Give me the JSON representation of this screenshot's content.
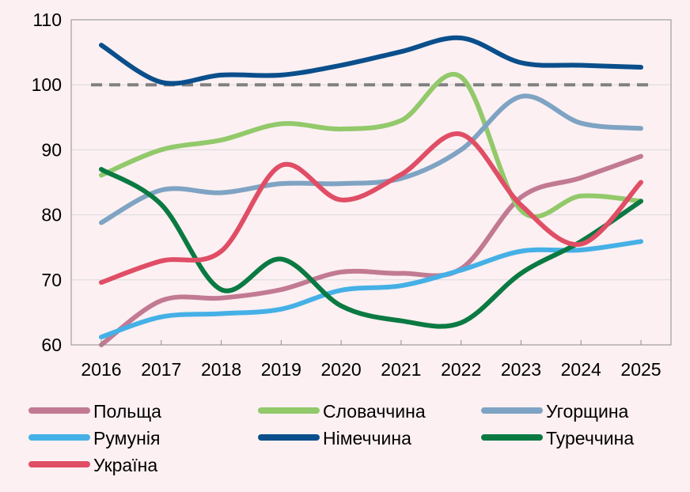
{
  "chart_data": {
    "type": "line",
    "title": "",
    "xlabel": "",
    "ylabel": "",
    "x": [
      2016,
      2017,
      2018,
      2019,
      2020,
      2021,
      2022,
      2023,
      2024,
      2025
    ],
    "ylim": [
      60,
      110
    ],
    "yticks": [
      60,
      70,
      80,
      90,
      100,
      110
    ],
    "grid": true,
    "legend_position": "bottom",
    "reference_line": {
      "value": 100,
      "style": "dashed",
      "color": "#808080"
    },
    "series": [
      {
        "name": "Польща",
        "color": "#c27a93",
        "values": [
          60.0,
          66.8,
          67.2,
          68.5,
          71.2,
          71.0,
          71.7,
          82.7,
          85.7,
          89.0
        ]
      },
      {
        "name": "Словаччина",
        "color": "#92c96a",
        "values": [
          86.1,
          90.0,
          91.5,
          94.0,
          93.2,
          94.5,
          101.2,
          80.7,
          82.9,
          82.1
        ]
      },
      {
        "name": "Угорщина",
        "color": "#7fa3c3",
        "values": [
          78.8,
          83.8,
          83.4,
          84.8,
          84.8,
          85.6,
          90.0,
          98.2,
          94.1,
          93.3
        ]
      },
      {
        "name": "Румунія",
        "color": "#45b0e6",
        "values": [
          61.2,
          64.3,
          64.8,
          65.5,
          68.4,
          69.1,
          71.5,
          74.4,
          74.6,
          75.9
        ]
      },
      {
        "name": "Німеччина",
        "color": "#0a4f8c",
        "values": [
          106.1,
          100.4,
          101.5,
          101.5,
          103.0,
          105.1,
          107.2,
          103.4,
          103.0,
          102.7
        ]
      },
      {
        "name": "Туреччина",
        "color": "#0a7a42",
        "values": [
          87.0,
          81.6,
          68.5,
          73.2,
          66.0,
          63.7,
          63.4,
          71.0,
          75.9,
          82.1
        ]
      },
      {
        "name": "Україна",
        "color": "#e04e66",
        "values": [
          69.6,
          72.9,
          74.4,
          87.6,
          82.3,
          86.2,
          92.4,
          81.5,
          75.5,
          85.0
        ]
      }
    ]
  }
}
